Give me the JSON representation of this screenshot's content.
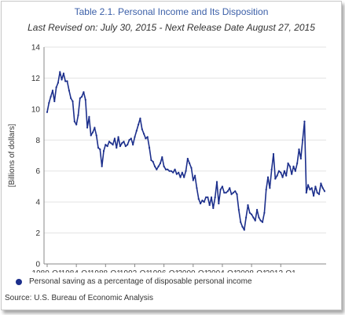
{
  "title": "Table 2.1. Personal Income and Its Disposition",
  "subtitle": "Last Revised on: July 30, 2015 - Next Release Date August 27, 2015",
  "source": "Source: U.S. Bureau of Economic  Analysis",
  "colors": {
    "line": "#1c2f8c",
    "title": "#3b5fa8",
    "grid": "#e3e3e3",
    "axis": "#888888"
  },
  "chart_data": {
    "type": "line",
    "title": "Table 2.1. Personal Income and Its Disposition",
    "xlabel": "",
    "ylabel": "[Billions of dollars]",
    "ylim": [
      0,
      14
    ],
    "yticks": [
      0,
      2,
      4,
      6,
      8,
      10,
      12,
      14
    ],
    "xtick_labels": [
      "1980-Q1",
      "1984-Q1",
      "1988-Q1",
      "1992-Q1",
      "1996-Q1",
      "2000-Q1",
      "2004-Q1",
      "2008-Q1",
      "2012-Q1"
    ],
    "grid": true,
    "legend_position": "bottom-left",
    "series": [
      {
        "name": "Personal saving as a percentage of disposable personal income",
        "x_start": "1980-Q1",
        "frequency": "quarterly",
        "values": [
          9.8,
          10.4,
          10.8,
          11.2,
          10.5,
          11.4,
          11.7,
          12.4,
          11.9,
          12.3,
          11.8,
          11.8,
          11.2,
          10.7,
          10.5,
          9.2,
          9.0,
          9.6,
          10.7,
          10.8,
          11.1,
          10.6,
          8.8,
          9.5,
          8.3,
          8.5,
          8.8,
          8.3,
          7.5,
          7.4,
          6.3,
          7.3,
          7.7,
          7.6,
          7.9,
          7.8,
          7.7,
          8.1,
          7.5,
          8.2,
          7.6,
          7.8,
          7.9,
          7.6,
          7.7,
          8.0,
          8.1,
          7.7,
          8.2,
          8.6,
          9.0,
          9.4,
          8.7,
          8.4,
          8.1,
          8.2,
          7.5,
          6.7,
          6.6,
          6.3,
          6.1,
          6.3,
          6.5,
          6.9,
          6.3,
          6.1,
          6.1,
          6.0,
          6.0,
          5.9,
          6.1,
          5.8,
          5.9,
          5.6,
          5.9,
          5.6,
          6.0,
          6.8,
          6.5,
          6.2,
          5.4,
          5.7,
          4.9,
          4.2,
          3.9,
          4.1,
          4.0,
          4.3,
          4.3,
          3.8,
          4.3,
          3.6,
          4.3,
          5.3,
          3.9,
          4.8,
          5.0,
          4.6,
          4.6,
          4.7,
          4.9,
          4.5,
          4.6,
          4.7,
          4.5,
          3.5,
          2.7,
          2.4,
          2.2,
          3.0,
          3.8,
          3.3,
          3.2,
          3.0,
          2.8,
          3.5,
          3.0,
          2.8,
          2.7,
          3.3,
          4.8,
          5.6,
          4.9,
          6.1,
          7.1,
          5.5,
          5.7,
          6.0,
          5.9,
          5.6,
          6.0,
          5.7,
          6.5,
          6.3,
          5.8,
          6.3,
          6.0,
          6.5,
          7.4,
          6.8,
          8.0,
          9.2,
          4.6,
          5.1,
          4.8,
          4.9,
          4.4,
          5.0,
          4.6,
          4.5,
          5.2,
          4.9,
          4.7
        ]
      }
    ]
  }
}
